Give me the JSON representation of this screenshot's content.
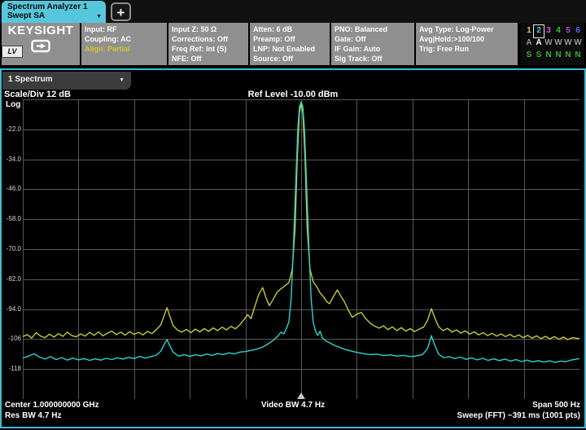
{
  "tab_bar": {
    "tab": {
      "line1": "Spectrum Analyzer 1",
      "line2": "Swept SA",
      "dropdown_icon": "▼"
    },
    "add_label": "+"
  },
  "header": {
    "brand": "KEYSIGHT",
    "lv_badge": "LV",
    "columns": [
      {
        "width": 105,
        "lines": [
          {
            "text": "Input: RF"
          },
          {
            "text": "Coupling: AC"
          },
          {
            "text": "Align: Partial",
            "color": "#d8c62e"
          }
        ]
      },
      {
        "width": 98,
        "lines": [
          {
            "text": "Input Z: 50 Ω"
          },
          {
            "text": "Corrections: Off"
          },
          {
            "text": "Freq Ref: Int (S)"
          },
          {
            "text": "NFE: Off"
          }
        ]
      },
      {
        "width": 98,
        "lines": [
          {
            "text": "Atten: 6 dB"
          },
          {
            "text": "Preamp: Off"
          },
          {
            "text": "LNP: Not Enabled"
          },
          {
            "text": "Source: Off"
          }
        ]
      },
      {
        "width": 102,
        "lines": [
          {
            "text": "PNO: Balanced"
          },
          {
            "text": "Gate: Off"
          },
          {
            "text": "IF Gain: Auto"
          },
          {
            "text": "Sig Track: Off"
          }
        ]
      },
      {
        "width": 125,
        "lines": [
          {
            "text": "Avg Type: Log-Power"
          },
          {
            "text": "Avg|Hold:>100/100"
          },
          {
            "text": "Trig: Free Run"
          }
        ]
      }
    ],
    "traces": {
      "items": [
        {
          "num": "1",
          "color": "#d2d24a",
          "type": "A",
          "state": "S",
          "selected": false
        },
        {
          "num": "2",
          "color": "#3ad2d2",
          "type": "A",
          "state": "S",
          "selected": true
        },
        {
          "num": "3",
          "color": "#e44fd0",
          "type": "W",
          "state": "N",
          "selected": false
        },
        {
          "num": "4",
          "color": "#3ac23a",
          "type": "W",
          "state": "N",
          "selected": false
        },
        {
          "num": "5",
          "color": "#a84fe4",
          "type": "W",
          "state": "N",
          "selected": false
        },
        {
          "num": "6",
          "color": "#4f6fe4",
          "type": "W",
          "state": "N",
          "selected": false
        }
      ],
      "type_color": "#9a9a9a",
      "type_active_color": "#ffffff",
      "state_color": "#3ab03a"
    }
  },
  "toolbar": {
    "trace_select": "1 Spectrum",
    "dropdown_icon": "▼"
  },
  "plot": {
    "scale_div": "Scale/Div 12 dB",
    "log_label": "Log",
    "ref_level": "Ref Level -10.00 dBm",
    "y_ticks": [
      "-22.0",
      "-34.0",
      "-46.0",
      "-58.0",
      "-70.0",
      "-82.0",
      "-94.0",
      "-106",
      "-118"
    ],
    "grid_color": "#585858",
    "marker_color": "#c8c8c8"
  },
  "footer": {
    "center_freq": "Center 1.000000000 GHz",
    "res_bw": "Res BW 4.7 Hz",
    "video_bw": "Video BW 4.7 Hz",
    "span": "Span 500 Hz",
    "sweep": "Sweep (FFT) ~391 ms (1001 pts)"
  },
  "chart_data": {
    "type": "line",
    "title": "Swept SA spectrum, Ref Level -10.00 dBm, 12 dB/div",
    "x_axis": {
      "center_label": "Center 1.000000000 GHz",
      "span_label": "Span 500 Hz",
      "x_unit": "fraction of span"
    },
    "y_axis": {
      "label": "Log power (dBm)",
      "ref_level_dbm": -10,
      "scale_db_per_div": 12,
      "ylim": [
        -130,
        -10
      ]
    },
    "grid": {
      "cols": 10,
      "rows": 10
    },
    "center_marker": true,
    "series": [
      {
        "name": "Trace 1 (Clear/Write, yellow)",
        "color": "#c9c93b",
        "points": [
          [
            0.0,
            -105.0
          ],
          [
            0.008,
            -104.2
          ],
          [
            0.016,
            -105.6
          ],
          [
            0.024,
            -103.4
          ],
          [
            0.032,
            -104.8
          ],
          [
            0.04,
            -105.4
          ],
          [
            0.048,
            -104.0
          ],
          [
            0.056,
            -105.2
          ],
          [
            0.064,
            -103.8
          ],
          [
            0.072,
            -104.9
          ],
          [
            0.08,
            -103.2
          ],
          [
            0.088,
            -104.6
          ],
          [
            0.096,
            -105.1
          ],
          [
            0.104,
            -103.9
          ],
          [
            0.112,
            -104.8
          ],
          [
            0.12,
            -103.3
          ],
          [
            0.128,
            -104.5
          ],
          [
            0.136,
            -103.1
          ],
          [
            0.144,
            -104.7
          ],
          [
            0.152,
            -103.6
          ],
          [
            0.16,
            -102.8
          ],
          [
            0.168,
            -104.2
          ],
          [
            0.176,
            -103.2
          ],
          [
            0.184,
            -104.4
          ],
          [
            0.192,
            -103.0
          ],
          [
            0.2,
            -104.1
          ],
          [
            0.208,
            -103.3
          ],
          [
            0.216,
            -104.3
          ],
          [
            0.224,
            -102.9
          ],
          [
            0.232,
            -103.8
          ],
          [
            0.24,
            -102.2
          ],
          [
            0.248,
            -100.3
          ],
          [
            0.254,
            -96.5
          ],
          [
            0.259,
            -93.4
          ],
          [
            0.264,
            -96.8
          ],
          [
            0.27,
            -100.6
          ],
          [
            0.278,
            -102.4
          ],
          [
            0.286,
            -103.2
          ],
          [
            0.294,
            -102.1
          ],
          [
            0.302,
            -103.4
          ],
          [
            0.31,
            -102.0
          ],
          [
            0.318,
            -103.1
          ],
          [
            0.326,
            -101.8
          ],
          [
            0.334,
            -102.9
          ],
          [
            0.342,
            -101.5
          ],
          [
            0.35,
            -102.6
          ],
          [
            0.358,
            -101.2
          ],
          [
            0.366,
            -102.3
          ],
          [
            0.374,
            -100.9
          ],
          [
            0.382,
            -101.9
          ],
          [
            0.39,
            -100.2
          ],
          [
            0.398,
            -98.0
          ],
          [
            0.404,
            -96.2
          ],
          [
            0.41,
            -97.8
          ],
          [
            0.416,
            -93.5
          ],
          [
            0.424,
            -88.0
          ],
          [
            0.431,
            -85.4
          ],
          [
            0.437,
            -89.5
          ],
          [
            0.443,
            -92.6
          ],
          [
            0.45,
            -90.0
          ],
          [
            0.457,
            -87.2
          ],
          [
            0.464,
            -85.8
          ],
          [
            0.471,
            -84.6
          ],
          [
            0.478,
            -83.4
          ],
          [
            0.484,
            -78.0
          ],
          [
            0.489,
            -62.0
          ],
          [
            0.493,
            -34.0
          ],
          [
            0.497,
            -15.5
          ],
          [
            0.5,
            -11.6
          ],
          [
            0.503,
            -15.5
          ],
          [
            0.507,
            -34.0
          ],
          [
            0.511,
            -62.0
          ],
          [
            0.516,
            -78.0
          ],
          [
            0.522,
            -83.2
          ],
          [
            0.528,
            -85.0
          ],
          [
            0.534,
            -87.5
          ],
          [
            0.54,
            -89.0
          ],
          [
            0.546,
            -91.0
          ],
          [
            0.551,
            -91.8
          ],
          [
            0.558,
            -88.9
          ],
          [
            0.565,
            -86.3
          ],
          [
            0.572,
            -89.0
          ],
          [
            0.578,
            -91.2
          ],
          [
            0.585,
            -94.5
          ],
          [
            0.592,
            -97.3
          ],
          [
            0.6,
            -96.0
          ],
          [
            0.608,
            -95.3
          ],
          [
            0.616,
            -97.8
          ],
          [
            0.624,
            -99.6
          ],
          [
            0.632,
            -100.8
          ],
          [
            0.64,
            -101.6
          ],
          [
            0.648,
            -100.7
          ],
          [
            0.656,
            -102.2
          ],
          [
            0.664,
            -101.1
          ],
          [
            0.672,
            -102.6
          ],
          [
            0.68,
            -101.4
          ],
          [
            0.688,
            -102.8
          ],
          [
            0.696,
            -101.8
          ],
          [
            0.704,
            -103.0
          ],
          [
            0.712,
            -102.0
          ],
          [
            0.72,
            -101.2
          ],
          [
            0.727,
            -98.5
          ],
          [
            0.734,
            -93.8
          ],
          [
            0.74,
            -97.5
          ],
          [
            0.747,
            -101.0
          ],
          [
            0.755,
            -102.6
          ],
          [
            0.763,
            -101.7
          ],
          [
            0.771,
            -103.2
          ],
          [
            0.779,
            -102.3
          ],
          [
            0.787,
            -103.6
          ],
          [
            0.795,
            -102.7
          ],
          [
            0.803,
            -104.0
          ],
          [
            0.811,
            -103.1
          ],
          [
            0.819,
            -104.3
          ],
          [
            0.827,
            -103.4
          ],
          [
            0.835,
            -104.6
          ],
          [
            0.843,
            -103.7
          ],
          [
            0.851,
            -104.8
          ],
          [
            0.859,
            -103.9
          ],
          [
            0.867,
            -105.0
          ],
          [
            0.875,
            -104.1
          ],
          [
            0.883,
            -105.2
          ],
          [
            0.891,
            -104.3
          ],
          [
            0.899,
            -105.4
          ],
          [
            0.907,
            -104.5
          ],
          [
            0.915,
            -105.6
          ],
          [
            0.923,
            -104.7
          ],
          [
            0.931,
            -105.8
          ],
          [
            0.939,
            -104.9
          ],
          [
            0.947,
            -105.9
          ],
          [
            0.955,
            -105.0
          ],
          [
            0.963,
            -106.1
          ],
          [
            0.971,
            -105.2
          ],
          [
            0.979,
            -106.2
          ],
          [
            0.987,
            -105.4
          ],
          [
            1.0,
            -105.8
          ]
        ]
      },
      {
        "name": "Trace 2 (Average, cyan)",
        "color": "#2fd1d1",
        "points": [
          [
            0.0,
            -113.6
          ],
          [
            0.01,
            -112.8
          ],
          [
            0.02,
            -111.9
          ],
          [
            0.03,
            -113.2
          ],
          [
            0.04,
            -114.0
          ],
          [
            0.05,
            -113.0
          ],
          [
            0.06,
            -114.2
          ],
          [
            0.07,
            -113.4
          ],
          [
            0.08,
            -114.4
          ],
          [
            0.09,
            -113.6
          ],
          [
            0.1,
            -114.3
          ],
          [
            0.11,
            -113.8
          ],
          [
            0.12,
            -114.5
          ],
          [
            0.13,
            -113.9
          ],
          [
            0.14,
            -114.4
          ],
          [
            0.15,
            -113.7
          ],
          [
            0.16,
            -114.2
          ],
          [
            0.17,
            -113.5
          ],
          [
            0.18,
            -114.0
          ],
          [
            0.19,
            -113.3
          ],
          [
            0.2,
            -113.8
          ],
          [
            0.21,
            -112.9
          ],
          [
            0.22,
            -113.6
          ],
          [
            0.23,
            -113.0
          ],
          [
            0.24,
            -112.4
          ],
          [
            0.248,
            -110.8
          ],
          [
            0.254,
            -108.2
          ],
          [
            0.259,
            -106.2
          ],
          [
            0.264,
            -108.6
          ],
          [
            0.27,
            -111.2
          ],
          [
            0.28,
            -112.8
          ],
          [
            0.29,
            -112.2
          ],
          [
            0.3,
            -112.9
          ],
          [
            0.31,
            -112.3
          ],
          [
            0.32,
            -112.7
          ],
          [
            0.33,
            -112.0
          ],
          [
            0.34,
            -112.5
          ],
          [
            0.35,
            -111.8
          ],
          [
            0.36,
            -112.2
          ],
          [
            0.37,
            -111.5
          ],
          [
            0.38,
            -111.9
          ],
          [
            0.39,
            -111.2
          ],
          [
            0.4,
            -111.0
          ],
          [
            0.41,
            -110.5
          ],
          [
            0.42,
            -110.0
          ],
          [
            0.43,
            -109.3
          ],
          [
            0.44,
            -108.0
          ],
          [
            0.45,
            -106.5
          ],
          [
            0.458,
            -104.8
          ],
          [
            0.464,
            -103.2
          ],
          [
            0.469,
            -103.9
          ],
          [
            0.474,
            -101.5
          ],
          [
            0.478,
            -99.0
          ],
          [
            0.482,
            -90.0
          ],
          [
            0.486,
            -70.0
          ],
          [
            0.49,
            -45.0
          ],
          [
            0.494,
            -22.0
          ],
          [
            0.497,
            -13.0
          ],
          [
            0.5,
            -11.0
          ],
          [
            0.503,
            -13.0
          ],
          [
            0.506,
            -22.0
          ],
          [
            0.51,
            -45.0
          ],
          [
            0.514,
            -70.0
          ],
          [
            0.518,
            -90.0
          ],
          [
            0.522,
            -99.5
          ],
          [
            0.526,
            -103.0
          ],
          [
            0.53,
            -104.5
          ],
          [
            0.534,
            -102.8
          ],
          [
            0.538,
            -105.5
          ],
          [
            0.545,
            -106.8
          ],
          [
            0.552,
            -107.6
          ],
          [
            0.56,
            -108.5
          ],
          [
            0.57,
            -109.4
          ],
          [
            0.58,
            -110.2
          ],
          [
            0.59,
            -110.8
          ],
          [
            0.6,
            -111.3
          ],
          [
            0.612,
            -111.8
          ],
          [
            0.624,
            -112.2
          ],
          [
            0.636,
            -112.0
          ],
          [
            0.648,
            -112.6
          ],
          [
            0.66,
            -112.3
          ],
          [
            0.672,
            -112.8
          ],
          [
            0.684,
            -112.5
          ],
          [
            0.696,
            -113.0
          ],
          [
            0.708,
            -112.7
          ],
          [
            0.718,
            -112.2
          ],
          [
            0.727,
            -109.8
          ],
          [
            0.734,
            -104.6
          ],
          [
            0.74,
            -108.5
          ],
          [
            0.747,
            -112.0
          ],
          [
            0.756,
            -113.4
          ],
          [
            0.766,
            -113.0
          ],
          [
            0.776,
            -113.8
          ],
          [
            0.786,
            -113.2
          ],
          [
            0.796,
            -114.1
          ],
          [
            0.806,
            -113.5
          ],
          [
            0.816,
            -114.3
          ],
          [
            0.826,
            -113.7
          ],
          [
            0.836,
            -114.5
          ],
          [
            0.846,
            -113.9
          ],
          [
            0.856,
            -114.6
          ],
          [
            0.866,
            -114.0
          ],
          [
            0.876,
            -114.8
          ],
          [
            0.886,
            -114.2
          ],
          [
            0.896,
            -115.0
          ],
          [
            0.906,
            -114.4
          ],
          [
            0.916,
            -115.1
          ],
          [
            0.926,
            -114.6
          ],
          [
            0.936,
            -115.2
          ],
          [
            0.946,
            -114.7
          ],
          [
            0.956,
            -115.3
          ],
          [
            0.966,
            -114.8
          ],
          [
            0.976,
            -115.0
          ],
          [
            0.986,
            -114.3
          ],
          [
            1.0,
            -113.8
          ]
        ]
      }
    ]
  }
}
